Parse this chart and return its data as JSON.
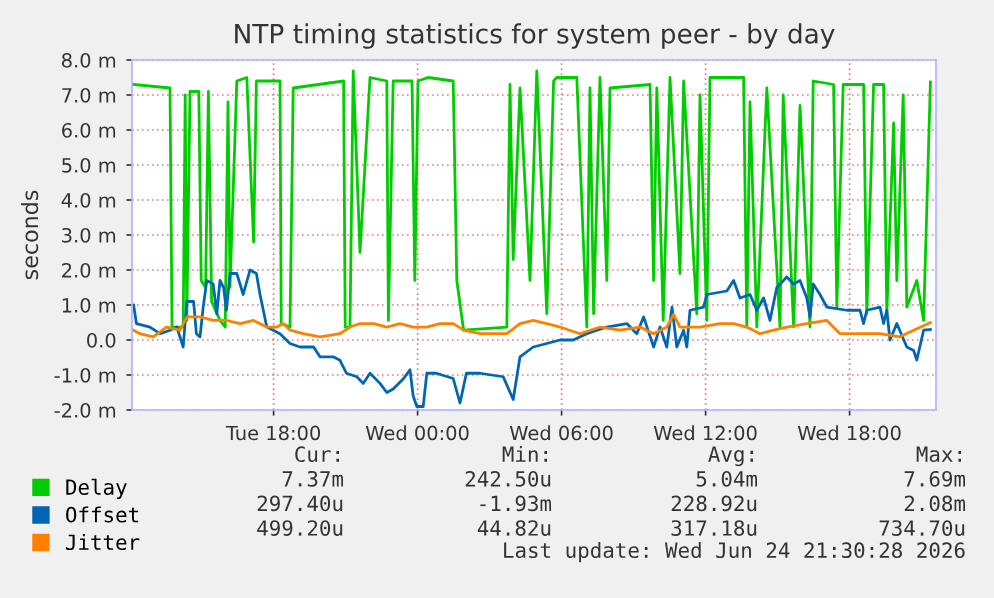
{
  "chart_data": {
    "type": "line",
    "title": "NTP timing statistics for system peer - by day",
    "ylabel": "seconds",
    "xlim": [
      "2026-06-23T12:06",
      "2026-06-24T21:36"
    ],
    "xticks": [
      {
        "value": "2026-06-23T18:00",
        "label": "Tue 18:00"
      },
      {
        "value": "2026-06-24T00:00",
        "label": "Wed 00:00"
      },
      {
        "value": "2026-06-24T06:00",
        "label": "Wed 06:00"
      },
      {
        "value": "2026-06-24T12:00",
        "label": "Wed 12:00"
      },
      {
        "value": "2026-06-24T18:00",
        "label": "Wed 18:00"
      }
    ],
    "ylim": [
      -2,
      8
    ],
    "yticks": [
      {
        "value": -2,
        "label": "-2.0 m"
      },
      {
        "value": -1,
        "label": "-1.0 m"
      },
      {
        "value": 0,
        "label": "0.0"
      },
      {
        "value": 1,
        "label": "1.0 m"
      },
      {
        "value": 2,
        "label": "2.0 m"
      },
      {
        "value": 3,
        "label": "3.0 m"
      },
      {
        "value": 4,
        "label": "4.0 m"
      },
      {
        "value": 5,
        "label": "5.0 m"
      },
      {
        "value": 6,
        "label": "6.0 m"
      },
      {
        "value": 7,
        "label": "7.0 m"
      },
      {
        "value": 8,
        "label": "8.0 m"
      }
    ],
    "grid": true,
    "legend": "bottom",
    "series": [
      {
        "name": "Delay",
        "color": "#00cc00",
        "x": [
          "2026-06-23T12:10",
          "2026-06-23T13:41",
          "2026-06-23T13:46",
          "2026-06-23T14:14",
          "2026-06-23T14:19",
          "2026-06-23T14:23",
          "2026-06-23T14:31",
          "2026-06-23T14:53",
          "2026-06-23T14:59",
          "2026-06-23T15:10",
          "2026-06-23T15:17",
          "2026-06-23T15:25",
          "2026-06-23T15:46",
          "2026-06-23T15:59",
          "2026-06-23T16:06",
          "2026-06-23T16:11",
          "2026-06-23T16:28",
          "2026-06-23T16:53",
          "2026-06-23T17:10",
          "2026-06-23T17:17",
          "2026-06-23T18:16",
          "2026-06-23T18:19",
          "2026-06-23T18:41",
          "2026-06-23T18:49",
          "2026-06-23T20:55",
          "2026-06-23T20:59",
          "2026-06-23T21:11",
          "2026-06-23T21:19",
          "2026-06-23T21:36",
          "2026-06-23T22:01",
          "2026-06-23T22:43",
          "2026-06-23T22:47",
          "2026-06-23T22:59",
          "2026-06-23T23:46",
          "2026-06-23T23:53",
          "2026-06-24T00:01",
          "2026-06-24T00:26",
          "2026-06-24T01:29",
          "2026-06-24T01:38",
          "2026-06-24T01:55",
          "2026-06-24T03:43",
          "2026-06-24T03:51",
          "2026-06-24T03:59",
          "2026-06-24T04:16",
          "2026-06-24T04:41",
          "2026-06-24T04:58",
          "2026-06-24T05:23",
          "2026-06-24T05:40",
          "2026-06-24T05:48",
          "2026-06-24T06:38",
          "2026-06-24T07:03",
          "2026-06-24T07:11",
          "2026-06-24T07:20",
          "2026-06-24T07:36",
          "2026-06-24T07:53",
          "2026-06-24T08:01",
          "2026-06-24T09:41",
          "2026-06-24T09:50",
          "2026-06-24T09:58",
          "2026-06-24T10:14",
          "2026-06-24T10:31",
          "2026-06-24T10:56",
          "2026-06-24T11:05",
          "2026-06-24T11:38",
          "2026-06-24T11:46",
          "2026-06-24T12:03",
          "2026-06-24T12:11",
          "2026-06-24T13:35",
          "2026-06-24T13:43",
          "2026-06-24T13:51",
          "2026-06-24T14:08",
          "2026-06-24T14:33",
          "2026-06-24T15:06",
          "2026-06-24T15:14",
          "2026-06-24T15:40",
          "2026-06-24T15:56",
          "2026-06-24T16:21",
          "2026-06-24T16:29",
          "2026-06-24T17:20",
          "2026-06-24T17:28",
          "2026-06-24T17:44",
          "2026-06-24T18:35",
          "2026-06-24T18:43",
          "2026-06-24T19:00",
          "2026-06-24T19:25",
          "2026-06-24T19:33",
          "2026-06-24T19:50",
          "2026-06-24T19:58",
          "2026-06-24T20:14",
          "2026-06-24T20:23",
          "2026-06-24T20:48",
          "2026-06-24T21:05",
          "2026-06-24T21:22"
        ],
        "values": [
          7.3,
          7.2,
          0.37,
          0.37,
          7.0,
          0.56,
          7.1,
          7.1,
          1.7,
          1.5,
          7.1,
          1.1,
          0.56,
          0.37,
          6.8,
          1.5,
          7.4,
          7.5,
          2.8,
          7.4,
          7.4,
          0.47,
          0.37,
          7.2,
          7.4,
          0.37,
          0.37,
          7.69,
          2.5,
          7.5,
          7.4,
          0.56,
          7.4,
          7.4,
          1.7,
          7.4,
          7.5,
          7.4,
          1.7,
          0.28,
          0.37,
          7.3,
          2.3,
          7.2,
          1.7,
          7.69,
          0.75,
          7.4,
          7.5,
          7.5,
          0.37,
          7.2,
          0.75,
          7.5,
          1.7,
          7.2,
          7.3,
          1.7,
          7.2,
          0.56,
          7.5,
          1.9,
          7.4,
          0.75,
          7.0,
          0.56,
          7.5,
          7.5,
          0.37,
          6.8,
          0.37,
          7.2,
          0.37,
          7.0,
          0.37,
          6.7,
          0.37,
          7.4,
          7.3,
          0.94,
          7.3,
          7.3,
          0.75,
          7.3,
          7.3,
          0.75,
          6.2,
          1.7,
          7.0,
          0.94,
          1.7,
          0.56,
          7.37
        ]
      },
      {
        "name": "Offset",
        "color": "#0066b3",
        "x": [
          "2026-06-23T12:10",
          "2026-06-23T12:17",
          "2026-06-23T12:51",
          "2026-06-23T13:16",
          "2026-06-23T13:41",
          "2026-06-23T13:58",
          "2026-06-23T14:14",
          "2026-06-23T14:23",
          "2026-06-23T14:40",
          "2026-06-23T14:47",
          "2026-06-23T14:56",
          "2026-06-23T15:04",
          "2026-06-23T15:13",
          "2026-06-23T15:29",
          "2026-06-23T15:38",
          "2026-06-23T15:46",
          "2026-06-23T15:55",
          "2026-06-23T16:02",
          "2026-06-23T16:11",
          "2026-06-23T16:28",
          "2026-06-23T16:44",
          "2026-06-23T17:01",
          "2026-06-23T17:17",
          "2026-06-23T17:26",
          "2026-06-23T17:43",
          "2026-06-23T17:59",
          "2026-06-23T18:16",
          "2026-06-23T18:41",
          "2026-06-23T19:06",
          "2026-06-23T19:40",
          "2026-06-23T19:56",
          "2026-06-23T20:29",
          "2026-06-23T20:46",
          "2026-06-23T21:02",
          "2026-06-23T21:28",
          "2026-06-23T21:44",
          "2026-06-23T22:01",
          "2026-06-23T22:26",
          "2026-06-23T22:43",
          "2026-06-23T22:59",
          "2026-06-23T23:25",
          "2026-06-23T23:41",
          "2026-06-23T23:49",
          "2026-06-23T23:58",
          "2026-06-24T00:14",
          "2026-06-24T00:23",
          "2026-06-24T00:47",
          "2026-06-24T01:29",
          "2026-06-24T01:46",
          "2026-06-24T02:02",
          "2026-06-24T02:36",
          "2026-06-24T03:34",
          "2026-06-24T03:59",
          "2026-06-24T04:16",
          "2026-06-24T04:49",
          "2026-06-24T05:23",
          "2026-06-24T05:56",
          "2026-06-24T06:29",
          "2026-06-24T07:03",
          "2026-06-24T07:53",
          "2026-06-24T08:43",
          "2026-06-24T09:08",
          "2026-06-24T09:25",
          "2026-06-24T09:50",
          "2026-06-24T10:06",
          "2026-06-24T10:23",
          "2026-06-24T10:36",
          "2026-06-24T10:48",
          "2026-06-24T11:05",
          "2026-06-24T11:13",
          "2026-06-24T11:21",
          "2026-06-24T11:55",
          "2026-06-24T12:03",
          "2026-06-24T12:53",
          "2026-06-24T13:10",
          "2026-06-24T13:26",
          "2026-06-24T13:51",
          "2026-06-24T14:08",
          "2026-06-24T14:25",
          "2026-06-24T14:41",
          "2026-06-24T14:58",
          "2026-06-24T15:23",
          "2026-06-24T15:40",
          "2026-06-24T15:56",
          "2026-06-24T16:13",
          "2026-06-24T16:21",
          "2026-06-24T16:29",
          "2026-06-24T16:46",
          "2026-06-24T17:03",
          "2026-06-24T17:53",
          "2026-06-24T18:26",
          "2026-06-24T18:35",
          "2026-06-24T18:43",
          "2026-06-24T19:16",
          "2026-06-24T19:25",
          "2026-06-24T19:33",
          "2026-06-24T19:41",
          "2026-06-24T19:58",
          "2026-06-24T20:23",
          "2026-06-24T20:40",
          "2026-06-24T20:48",
          "2026-06-24T21:05",
          "2026-06-24T21:22"
        ],
        "values": [
          1.0,
          0.47,
          0.37,
          0.18,
          0.28,
          0.37,
          -0.2,
          1.1,
          1.1,
          0.18,
          0.09,
          0.94,
          1.7,
          1.6,
          0.75,
          1.7,
          1.5,
          0.85,
          1.9,
          1.9,
          1.3,
          2.0,
          1.9,
          1.3,
          0.37,
          0.28,
          0.18,
          -0.1,
          -0.2,
          -0.2,
          -0.48,
          -0.48,
          -0.58,
          -0.95,
          -1.05,
          -1.24,
          -0.95,
          -1.24,
          -1.5,
          -1.4,
          -1.1,
          -0.85,
          -1.6,
          -1.9,
          -1.9,
          -0.95,
          -0.95,
          -1.1,
          -1.8,
          -0.95,
          -0.95,
          -1.05,
          -1.7,
          -0.48,
          -0.2,
          -0.1,
          0.0,
          0.0,
          0.18,
          0.37,
          0.47,
          0.18,
          0.66,
          -0.2,
          0.37,
          -0.2,
          0.94,
          -0.2,
          0.28,
          -0.2,
          0.85,
          0.94,
          1.3,
          1.4,
          1.7,
          1.2,
          1.3,
          0.85,
          1.2,
          0.56,
          1.5,
          1.8,
          1.6,
          1.7,
          1.2,
          0.66,
          1.6,
          1.3,
          0.94,
          0.85,
          0.85,
          0.47,
          0.85,
          0.94,
          0.47,
          0.85,
          0.0,
          0.47,
          -0.2,
          -0.3,
          -0.57,
          0.28,
          0.3
        ]
      },
      {
        "name": "Jitter",
        "color": "#ff8000",
        "x": [
          "2026-06-23T12:10",
          "2026-06-23T12:26",
          "2026-06-23T12:59",
          "2026-06-23T13:32",
          "2026-06-23T14:06",
          "2026-06-23T14:23",
          "2026-06-23T14:56",
          "2026-06-23T15:29",
          "2026-06-23T16:02",
          "2026-06-23T16:36",
          "2026-06-23T17:10",
          "2026-06-23T17:43",
          "2026-06-23T18:08",
          "2026-06-23T18:24",
          "2026-06-23T18:41",
          "2026-06-23T19:14",
          "2026-06-23T19:56",
          "2026-06-23T20:46",
          "2026-06-23T21:11",
          "2026-06-23T21:36",
          "2026-06-23T22:10",
          "2026-06-23T22:43",
          "2026-06-23T23:16",
          "2026-06-23T23:49",
          "2026-06-24T00:23",
          "2026-06-24T00:56",
          "2026-06-24T01:29",
          "2026-06-24T01:55",
          "2026-06-24T02:36",
          "2026-06-24T03:43",
          "2026-06-24T04:16",
          "2026-06-24T04:49",
          "2026-06-24T05:23",
          "2026-06-24T05:56",
          "2026-06-24T06:46",
          "2026-06-24T07:36",
          "2026-06-24T08:26",
          "2026-06-24T09:16",
          "2026-06-24T09:50",
          "2026-06-24T10:23",
          "2026-06-24T10:40",
          "2026-06-24T10:56",
          "2026-06-24T11:46",
          "2026-06-24T12:36",
          "2026-06-24T13:10",
          "2026-06-24T13:43",
          "2026-06-24T14:16",
          "2026-06-24T14:50",
          "2026-06-24T15:23",
          "2026-06-24T16:13",
          "2026-06-24T17:03",
          "2026-06-24T17:36",
          "2026-06-24T18:10",
          "2026-06-24T19:16",
          "2026-06-24T20:06",
          "2026-06-24T20:40",
          "2026-06-24T21:22"
        ],
        "values": [
          0.28,
          0.18,
          0.09,
          0.37,
          0.28,
          0.66,
          0.66,
          0.56,
          0.56,
          0.47,
          0.56,
          0.37,
          0.37,
          0.47,
          0.28,
          0.18,
          0.09,
          0.18,
          0.37,
          0.47,
          0.47,
          0.37,
          0.47,
          0.37,
          0.37,
          0.47,
          0.47,
          0.28,
          0.18,
          0.18,
          0.47,
          0.56,
          0.47,
          0.37,
          0.18,
          0.37,
          0.28,
          0.37,
          0.18,
          0.37,
          0.73,
          0.37,
          0.37,
          0.47,
          0.47,
          0.37,
          0.18,
          0.28,
          0.37,
          0.47,
          0.56,
          0.18,
          0.18,
          0.18,
          0.09,
          0.28,
          0.5
        ]
      }
    ],
    "annotations": [
      "Cur:",
      "Min:",
      "Avg:",
      "Max:",
      "7.37m",
      "242.50u",
      "5.04m",
      "7.69m",
      "297.40u",
      "-1.93m",
      "228.92u",
      "2.08m",
      "499.20u",
      "44.82u",
      "317.18u",
      "734.70u",
      "Last update: Wed Jun 24 21:30:28 2026"
    ]
  }
}
